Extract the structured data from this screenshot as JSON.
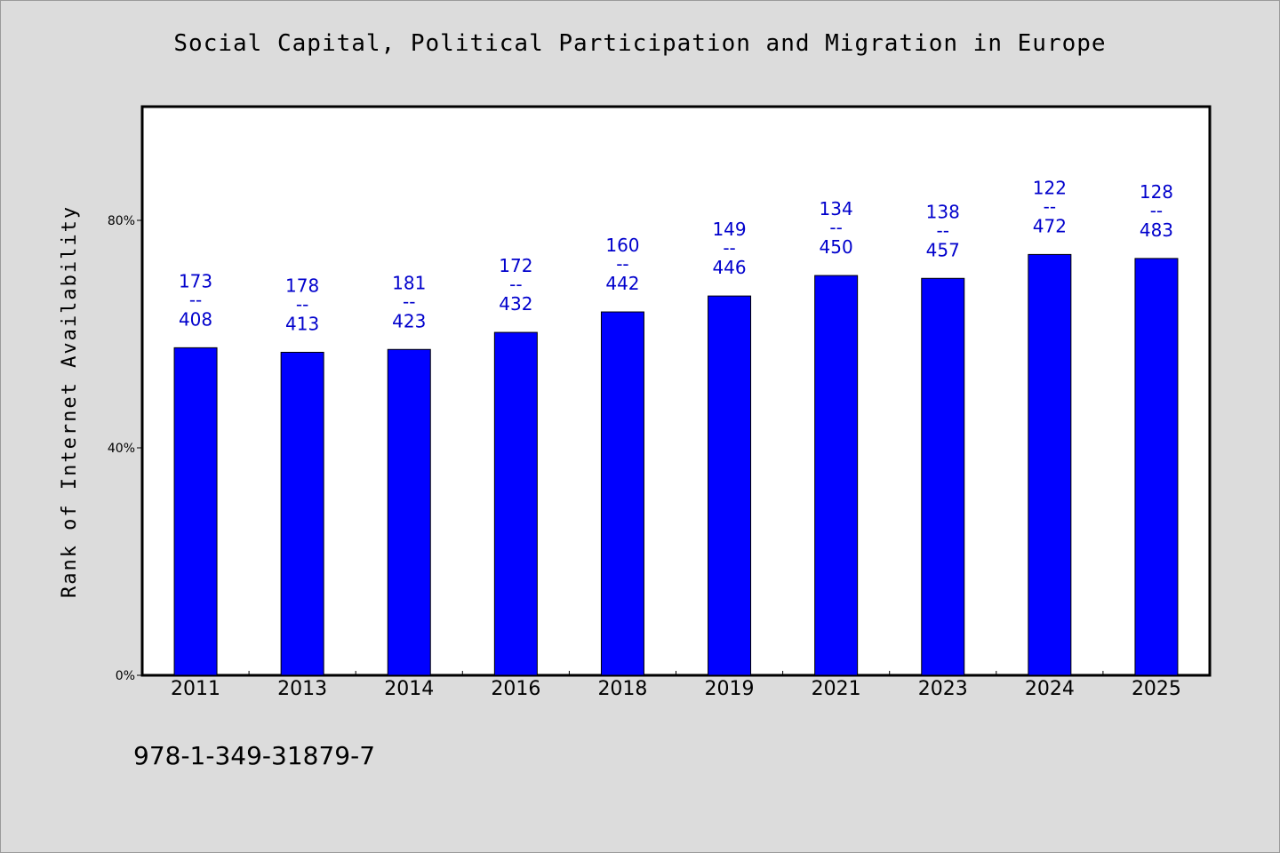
{
  "chart_data": {
    "type": "bar",
    "title": "Social Capital, Political Participation and Migration in Europe",
    "xlabel": "",
    "ylabel": "Rank of Internet Availability",
    "categories": [
      "2011",
      "2013",
      "2014",
      "2016",
      "2018",
      "2019",
      "2021",
      "2023",
      "2024",
      "2025"
    ],
    "values": [
      57.6,
      56.8,
      57.3,
      60.3,
      63.9,
      66.7,
      70.3,
      69.8,
      74.0,
      73.3
    ],
    "ranks": [
      173,
      178,
      181,
      172,
      160,
      149,
      134,
      138,
      122,
      128
    ],
    "totals": [
      408,
      413,
      423,
      432,
      442,
      446,
      450,
      457,
      472,
      483
    ],
    "label_separator": "--",
    "ylim": [
      0,
      100
    ],
    "yticks": [
      0,
      40,
      80
    ],
    "ytick_labels": [
      "0%",
      "40%",
      "80%"
    ],
    "grid": false,
    "legend": "none",
    "colors": {
      "bar": "#0000ff",
      "data_label": "#0000cc",
      "plot_background": "#ffffff",
      "page_background": "#dcdcdc"
    }
  },
  "footer": {
    "isbn": "978-1-349-31879-7"
  }
}
